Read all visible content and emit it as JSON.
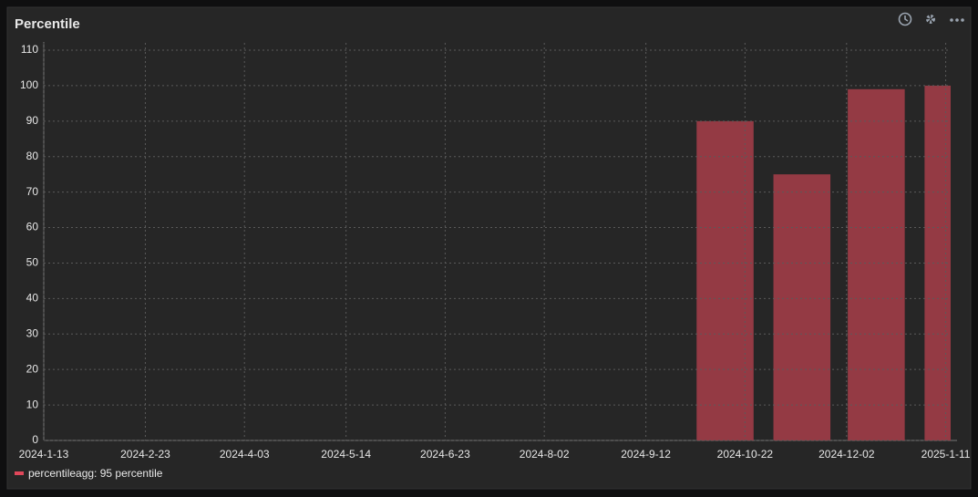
{
  "chart_data": {
    "type": "bar",
    "title": "Percentile",
    "x": [
      "2024-10-01",
      "2024-11-01",
      "2024-12-01",
      "2025-01-01"
    ],
    "series": [
      {
        "name": "percentileagg: 95 percentile",
        "color": "#943a44",
        "values": [
          90,
          75,
          99,
          100
        ]
      }
    ],
    "xlim": [
      "2024-01-13",
      "2025-01-13"
    ],
    "xticks": [
      {
        "value": "2024-01-13",
        "label": "2024-1-13"
      },
      {
        "value": "2024-02-23",
        "label": "2024-2-23"
      },
      {
        "value": "2024-04-03",
        "label": "2024-4-03"
      },
      {
        "value": "2024-05-14",
        "label": "2024-5-14"
      },
      {
        "value": "2024-06-23",
        "label": "2024-6-23"
      },
      {
        "value": "2024-08-02",
        "label": "2024-8-02"
      },
      {
        "value": "2024-09-12",
        "label": "2024-9-12"
      },
      {
        "value": "2024-10-22",
        "label": "2024-10-22"
      },
      {
        "value": "2024-12-02",
        "label": "2024-12-02"
      },
      {
        "value": "2025-01-11",
        "label": "2025-1-11"
      }
    ],
    "ylim": [
      0,
      110
    ],
    "yticks": [
      0,
      10,
      20,
      30,
      40,
      50,
      60,
      70,
      80,
      90,
      100,
      110
    ],
    "grid": true
  }
}
